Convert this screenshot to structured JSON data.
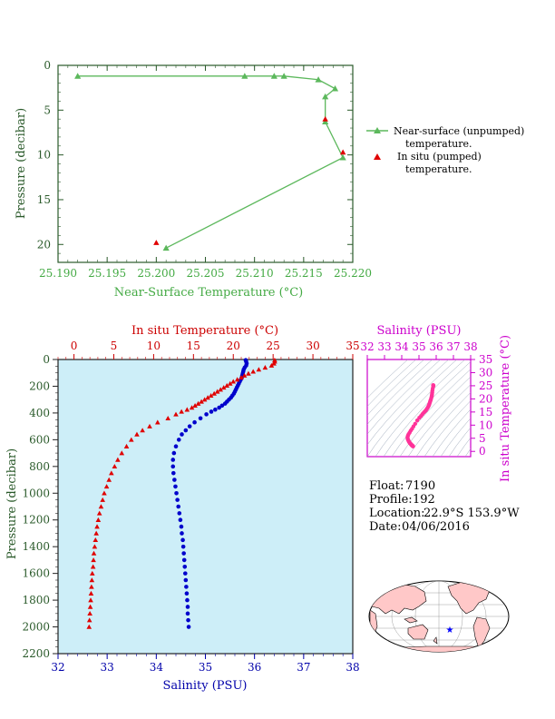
{
  "top_chart": {
    "type": "line",
    "xlabel": "Near-Surface Temperature (°C)",
    "ylabel": "Pressure (decibar)",
    "xlim": [
      25.19,
      25.22
    ],
    "ylim": [
      0,
      22
    ],
    "y_inverted": true,
    "xticks": [
      "25.190",
      "25.195",
      "25.200",
      "25.205",
      "25.210",
      "25.215",
      "25.220"
    ],
    "yticks": [
      "0",
      "5",
      "10",
      "15",
      "20"
    ],
    "colors": {
      "near_surface": "#5cb85c",
      "in_situ": "#e00000",
      "axis_text": "#44aa44"
    },
    "legend": [
      {
        "line1": "Near-surface (unpumped)",
        "line2": "temperature."
      },
      {
        "line1": "In situ (pumped)",
        "line2": "temperature."
      }
    ],
    "near_surface_points": [
      [
        25.192,
        1.2
      ],
      [
        25.209,
        1.2
      ],
      [
        25.212,
        1.2
      ],
      [
        25.213,
        1.2
      ],
      [
        25.2165,
        1.6
      ],
      [
        25.2182,
        2.6
      ],
      [
        25.2172,
        3.5
      ],
      [
        25.2172,
        6.3
      ],
      [
        25.219,
        10.3
      ],
      [
        25.201,
        20.4
      ]
    ],
    "in_situ_points": [
      [
        25.2172,
        6.0
      ],
      [
        25.219,
        9.7
      ],
      [
        25.2,
        19.8
      ]
    ]
  },
  "bottom_chart": {
    "type": "scatter",
    "top_axis_label": "In situ Temperature (°C)",
    "bottom_axis_label": "Salinity (PSU)",
    "ylabel": "Pressure (decibar)",
    "temp_ticks": [
      "0",
      "5",
      "10",
      "15",
      "20",
      "25",
      "30",
      "35"
    ],
    "sal_ticks": [
      "32",
      "33",
      "34",
      "35",
      "36",
      "37",
      "38"
    ],
    "pressure_ticks": [
      "0",
      "200",
      "400",
      "600",
      "800",
      "1000",
      "1200",
      "1400",
      "1600",
      "1800",
      "2000",
      "2200"
    ],
    "temp_lim": [
      -2,
      35
    ],
    "sal_lim": [
      32,
      38
    ],
    "pressure_lim": [
      0,
      2200
    ],
    "colors": {
      "temperature": "#e00000",
      "salinity": "#0000cc",
      "plot_bg": "#cdeef8",
      "temp_axis": "#cc0000",
      "sal_axis": "#0000aa"
    },
    "temperature_profile": [
      [
        25.2,
        5
      ],
      [
        25.2,
        15
      ],
      [
        25.1,
        30
      ],
      [
        24.8,
        45
      ],
      [
        24.0,
        60
      ],
      [
        23.2,
        75
      ],
      [
        22.5,
        90
      ],
      [
        21.9,
        105
      ],
      [
        21.4,
        120
      ],
      [
        21.0,
        135
      ],
      [
        20.5,
        150
      ],
      [
        20.0,
        165
      ],
      [
        19.6,
        180
      ],
      [
        19.2,
        195
      ],
      [
        18.8,
        210
      ],
      [
        18.4,
        225
      ],
      [
        18.0,
        240
      ],
      [
        17.6,
        255
      ],
      [
        17.2,
        270
      ],
      [
        16.8,
        285
      ],
      [
        16.4,
        300
      ],
      [
        16.0,
        315
      ],
      [
        15.6,
        330
      ],
      [
        15.2,
        345
      ],
      [
        14.8,
        360
      ],
      [
        14.2,
        375
      ],
      [
        13.5,
        390
      ],
      [
        12.8,
        410
      ],
      [
        11.8,
        440
      ],
      [
        10.5,
        470
      ],
      [
        9.5,
        500
      ],
      [
        8.6,
        530
      ],
      [
        7.9,
        560
      ],
      [
        7.2,
        600
      ],
      [
        6.6,
        650
      ],
      [
        6.0,
        700
      ],
      [
        5.5,
        750
      ],
      [
        5.1,
        800
      ],
      [
        4.7,
        850
      ],
      [
        4.4,
        900
      ],
      [
        4.1,
        950
      ],
      [
        3.8,
        1000
      ],
      [
        3.6,
        1050
      ],
      [
        3.4,
        1100
      ],
      [
        3.2,
        1150
      ],
      [
        3.05,
        1200
      ],
      [
        2.9,
        1250
      ],
      [
        2.8,
        1300
      ],
      [
        2.7,
        1350
      ],
      [
        2.6,
        1400
      ],
      [
        2.5,
        1450
      ],
      [
        2.45,
        1500
      ],
      [
        2.4,
        1550
      ],
      [
        2.3,
        1600
      ],
      [
        2.25,
        1650
      ],
      [
        2.2,
        1700
      ],
      [
        2.15,
        1750
      ],
      [
        2.1,
        1800
      ],
      [
        2.05,
        1850
      ],
      [
        2.0,
        1900
      ],
      [
        1.95,
        1950
      ],
      [
        1.9,
        2000
      ]
    ],
    "salinity_profile": [
      [
        35.82,
        5
      ],
      [
        35.83,
        15
      ],
      [
        35.84,
        30
      ],
      [
        35.83,
        45
      ],
      [
        35.8,
        60
      ],
      [
        35.78,
        75
      ],
      [
        35.77,
        90
      ],
      [
        35.76,
        105
      ],
      [
        35.75,
        120
      ],
      [
        35.74,
        135
      ],
      [
        35.72,
        150
      ],
      [
        35.7,
        165
      ],
      [
        35.68,
        180
      ],
      [
        35.66,
        195
      ],
      [
        35.64,
        210
      ],
      [
        35.62,
        225
      ],
      [
        35.6,
        240
      ],
      [
        35.58,
        255
      ],
      [
        35.55,
        270
      ],
      [
        35.52,
        285
      ],
      [
        35.48,
        300
      ],
      [
        35.44,
        315
      ],
      [
        35.4,
        330
      ],
      [
        35.34,
        345
      ],
      [
        35.28,
        360
      ],
      [
        35.2,
        375
      ],
      [
        35.12,
        390
      ],
      [
        35.02,
        410
      ],
      [
        34.9,
        440
      ],
      [
        34.78,
        470
      ],
      [
        34.68,
        500
      ],
      [
        34.6,
        530
      ],
      [
        34.52,
        560
      ],
      [
        34.46,
        600
      ],
      [
        34.4,
        650
      ],
      [
        34.36,
        700
      ],
      [
        34.34,
        750
      ],
      [
        34.34,
        800
      ],
      [
        34.35,
        850
      ],
      [
        34.37,
        900
      ],
      [
        34.39,
        950
      ],
      [
        34.41,
        1000
      ],
      [
        34.43,
        1050
      ],
      [
        34.45,
        1100
      ],
      [
        34.47,
        1150
      ],
      [
        34.49,
        1200
      ],
      [
        34.51,
        1250
      ],
      [
        34.52,
        1300
      ],
      [
        34.54,
        1350
      ],
      [
        34.55,
        1400
      ],
      [
        34.56,
        1450
      ],
      [
        34.57,
        1500
      ],
      [
        34.58,
        1550
      ],
      [
        34.59,
        1600
      ],
      [
        34.6,
        1650
      ],
      [
        34.61,
        1700
      ],
      [
        34.62,
        1750
      ],
      [
        34.63,
        1800
      ],
      [
        34.64,
        1850
      ],
      [
        34.64,
        1900
      ],
      [
        34.65,
        1950
      ],
      [
        34.66,
        2000
      ]
    ]
  },
  "ts_chart": {
    "top_axis_label": "Salinity (PSU)",
    "right_axis_label": "In situ Temperature (°C)",
    "sal_ticks": [
      "32",
      "33",
      "34",
      "35",
      "36",
      "37",
      "38"
    ],
    "temp_ticks": [
      "0",
      "5",
      "10",
      "15",
      "20",
      "25",
      "30",
      "35"
    ],
    "sal_lim": [
      32,
      38
    ],
    "temp_lim": [
      -2,
      35
    ],
    "colors": {
      "axis": "#cc00cc",
      "points": "#ff3399"
    }
  },
  "info": {
    "float_label": "Float:",
    "float_value": "7190",
    "profile_label": "Profile:",
    "profile_value": "192",
    "location_label": "Location:",
    "location_value": "22.9°S  153.9°W",
    "date_label": "Date:",
    "date_value": "04/06/2016"
  },
  "map": {
    "colors": {
      "ocean": "#ffffff",
      "land": "#ffc8c8",
      "marker": "#0000ff"
    }
  }
}
